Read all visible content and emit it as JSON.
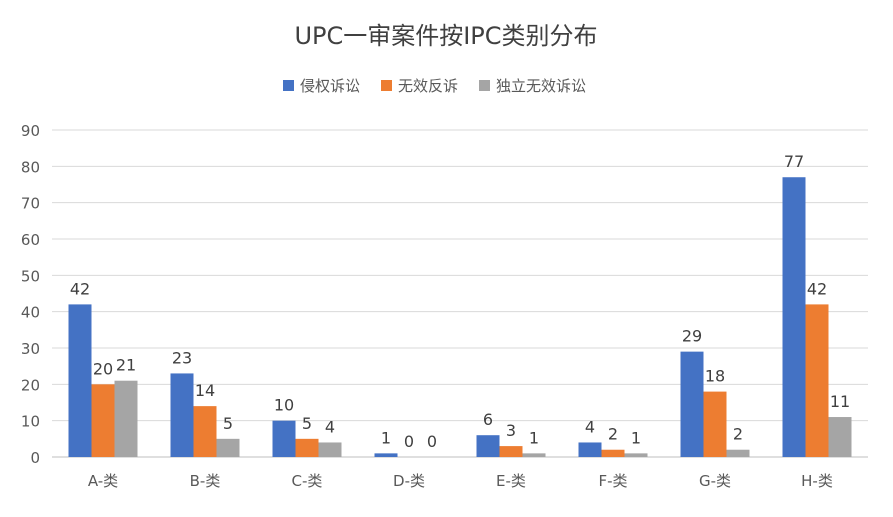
{
  "chart_data": {
    "type": "bar",
    "title": "UPC一审案件按IPC类别分布",
    "categories": [
      "A-类",
      "B-类",
      "C-类",
      "D-类",
      "E-类",
      "F-类",
      "G-类",
      "H-类"
    ],
    "series": [
      {
        "name": "侵权诉讼",
        "color": "#4472C4",
        "values": [
          42,
          23,
          10,
          1,
          6,
          4,
          29,
          77
        ]
      },
      {
        "name": "无效反诉",
        "color": "#ED7D31",
        "values": [
          20,
          14,
          5,
          0,
          3,
          2,
          18,
          42
        ]
      },
      {
        "name": "独立无效诉讼",
        "color": "#A5A5A5",
        "values": [
          21,
          5,
          4,
          0,
          1,
          1,
          2,
          11
        ]
      }
    ],
    "ylim": [
      0,
      90
    ],
    "yticks": [
      0,
      10,
      20,
      30,
      40,
      50,
      60,
      70,
      80,
      90
    ],
    "grid": true,
    "legend_position": "top-center",
    "xlabel": "",
    "ylabel": ""
  }
}
